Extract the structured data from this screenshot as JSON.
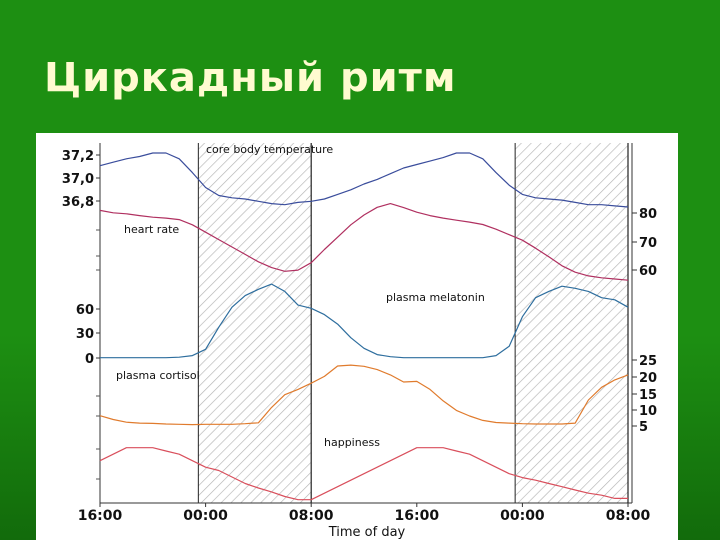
{
  "slide": {
    "title": "Циркадный ритм",
    "colors": {
      "background": "#1d8f12",
      "background_light": "#33b522",
      "background_dark": "#126b0b",
      "title": "#fffbd0"
    }
  },
  "chart_data": {
    "type": "line",
    "title": "",
    "xlabel": "Time of day",
    "x_ticks": [
      "16:00",
      "00:00",
      "08:00",
      "16:00",
      "00:00",
      "08:00"
    ],
    "x": [
      "16:00",
      "17:00",
      "18:00",
      "19:00",
      "20:00",
      "21:00",
      "22:00",
      "23:00",
      "00:00",
      "01:00",
      "02:00",
      "03:00",
      "04:00",
      "05:00",
      "06:00",
      "07:00",
      "08:00",
      "09:00",
      "10:00",
      "11:00",
      "12:00",
      "13:00",
      "14:00",
      "15:00",
      "16:00",
      "17:00",
      "18:00",
      "19:00",
      "20:00",
      "21:00",
      "22:00",
      "23:00",
      "00:00",
      "01:00",
      "02:00",
      "03:00",
      "04:00",
      "05:00",
      "06:00",
      "07:00",
      "08:00"
    ],
    "sleep_periods": [
      [
        "23:00",
        "08:00"
      ],
      [
        "23:00",
        "08:00"
      ]
    ],
    "grid": false,
    "legend": "none",
    "series": [
      {
        "name": "core body temperature",
        "color": "#3a4d9c",
        "left_ticks": [
          "37,2",
          "37,0",
          "36,8"
        ],
        "right_ticks": [],
        "values": [
          37.12,
          37.15,
          37.18,
          37.2,
          37.23,
          37.23,
          37.18,
          37.06,
          36.93,
          36.86,
          36.84,
          36.83,
          36.81,
          36.79,
          36.78,
          36.8,
          36.81,
          36.83,
          36.87,
          36.91,
          36.96,
          37.0,
          37.05,
          37.1,
          37.13,
          37.16,
          37.19,
          37.23,
          37.23,
          37.18,
          37.06,
          36.95,
          36.87,
          36.84,
          36.83,
          36.82,
          36.8,
          36.78,
          36.78,
          36.77,
          36.76
        ]
      },
      {
        "name": "heart rate",
        "color": "#b03060",
        "left_ticks": [],
        "right_ticks": [
          "80",
          "70",
          "60"
        ],
        "values": [
          79.6,
          78.8,
          78.5,
          77.9,
          77.4,
          77.1,
          76.6,
          74.9,
          72.5,
          70.1,
          67.7,
          65.3,
          62.9,
          61.0,
          59.8,
          60.2,
          62.6,
          66.9,
          70.9,
          74.9,
          78.1,
          80.6,
          81.8,
          80.5,
          79.0,
          77.9,
          77.1,
          76.4,
          75.8,
          75.0,
          73.5,
          71.7,
          69.9,
          67.3,
          64.5,
          61.6,
          59.5,
          58.3,
          57.7,
          57.3,
          56.9
        ]
      },
      {
        "name": "plasma melatonin",
        "color": "#2e6e9e",
        "left_ticks": [
          "60",
          "30",
          "0"
        ],
        "right_ticks": [],
        "values": [
          1,
          1,
          1,
          1,
          1,
          1,
          1.5,
          3,
          9,
          30,
          49,
          60,
          66,
          71,
          64,
          51,
          48,
          42,
          33,
          20,
          10,
          4,
          2,
          1,
          1,
          1,
          1,
          1,
          1,
          1,
          3,
          12,
          40,
          58,
          64,
          69,
          67,
          64,
          58,
          56,
          49
        ]
      },
      {
        "name": "plasma cortisol",
        "color": "#e07b2d",
        "left_ticks": [],
        "right_ticks": [
          "25",
          "20",
          "15",
          "10",
          "5"
        ],
        "values": [
          7.5,
          6.2,
          5.3,
          5.0,
          4.9,
          4.7,
          4.6,
          4.5,
          4.6,
          4.6,
          4.6,
          4.8,
          5.1,
          10.3,
          14.6,
          16.4,
          18.5,
          20.8,
          24.3,
          24.6,
          24.2,
          23.1,
          21.3,
          18.9,
          19.1,
          16.4,
          12.5,
          9.3,
          7.4,
          5.9,
          5.2,
          5.0,
          4.8,
          4.7,
          4.7,
          4.7,
          5.0,
          12.8,
          17.1,
          19.6,
          21.3
        ]
      },
      {
        "name": "happiness",
        "color": "#d94f5c",
        "left_ticks": [],
        "right_ticks": [],
        "values": [
          3,
          4,
          5,
          5,
          5,
          4.5,
          4,
          3,
          2,
          1.5,
          0.5,
          -0.5,
          -1.2,
          -1.8,
          -2.5,
          -3,
          -3,
          -2,
          -1,
          0,
          1,
          2,
          3,
          4,
          5,
          5,
          5,
          4.5,
          4,
          3,
          2,
          1,
          0.4,
          0,
          -0.5,
          -1,
          -1.5,
          -2,
          -2.3,
          -2.8,
          -2.8
        ]
      }
    ]
  }
}
